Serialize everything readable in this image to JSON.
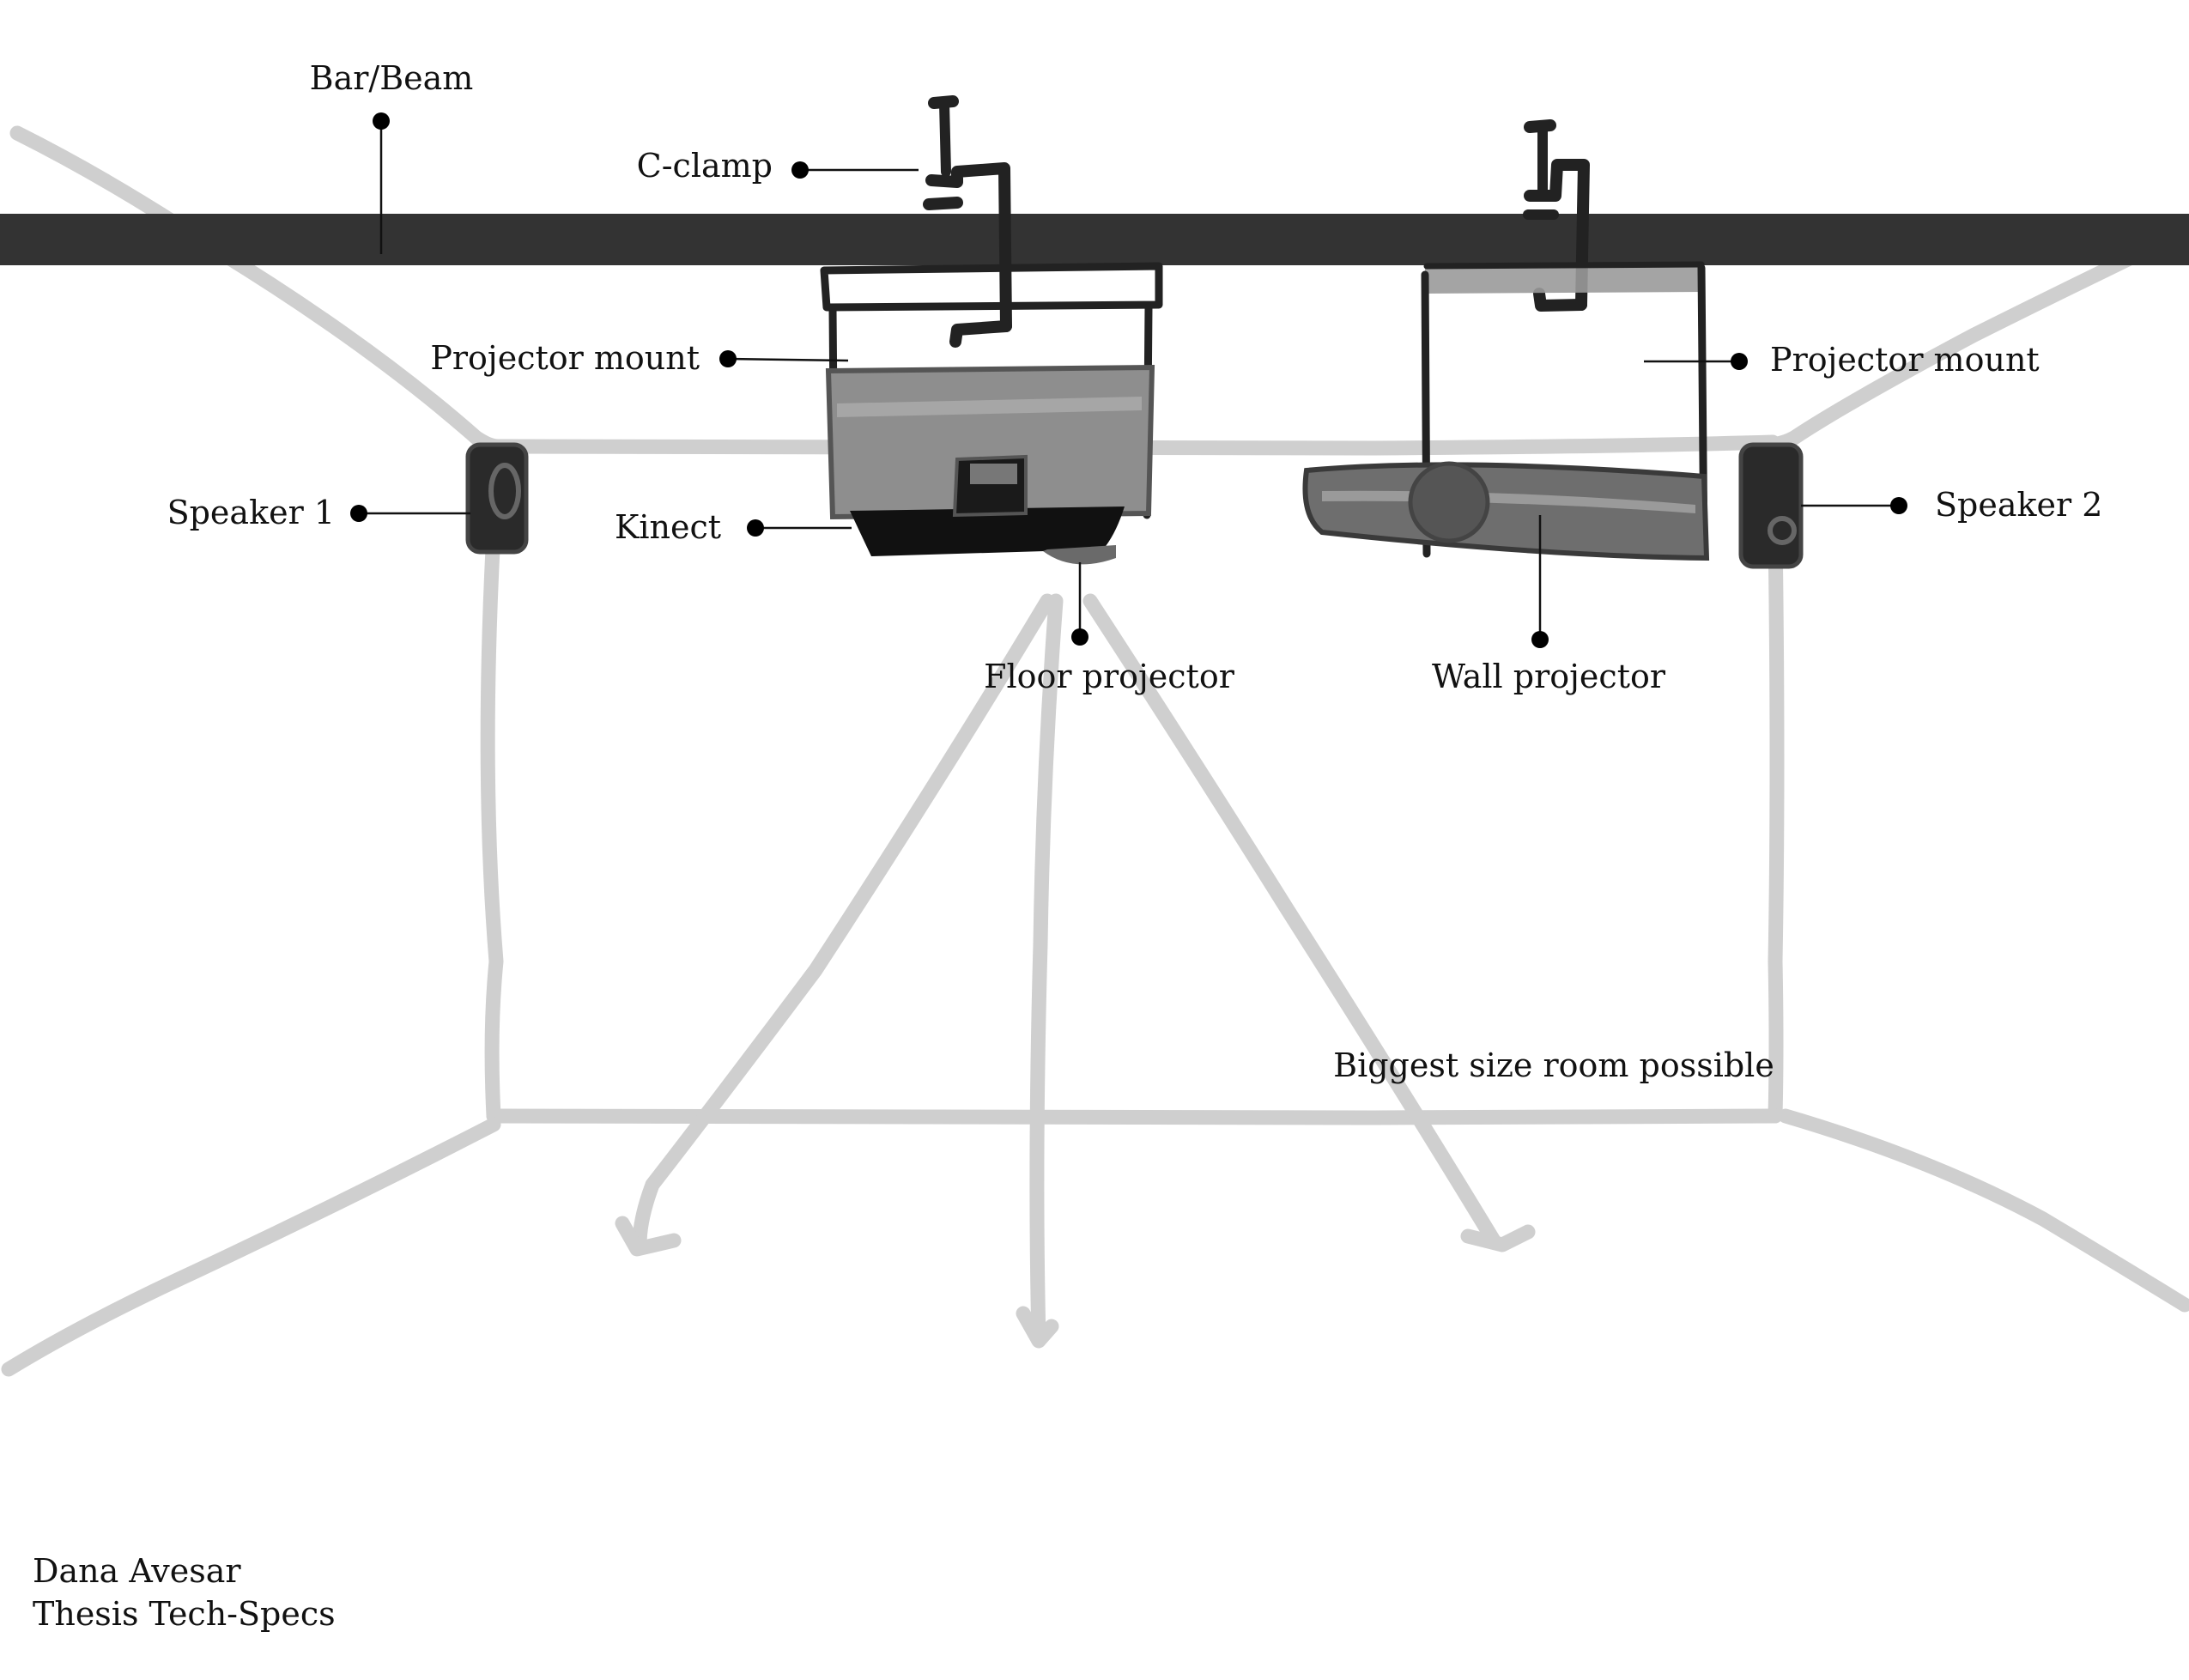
{
  "labels": {
    "bar_beam": "Bar/Beam",
    "c_clamp": "C-clamp",
    "projector_mount_left": "Projector mount",
    "projector_mount_right": "Projector mount",
    "speaker_1": "Speaker 1",
    "speaker_2": "Speaker 2",
    "kinect": "Kinect",
    "floor_projector": "Floor projector",
    "wall_projector": "Wall projector",
    "room_note": "Biggest size room possible"
  },
  "credit": {
    "author": "Dana Avesar",
    "project": "Thesis Tech-Specs"
  },
  "colors": {
    "beam": "#333333",
    "room_lines": "#cfcfcf",
    "ink": "#222222",
    "projector_fill": "#8e8e8e"
  }
}
